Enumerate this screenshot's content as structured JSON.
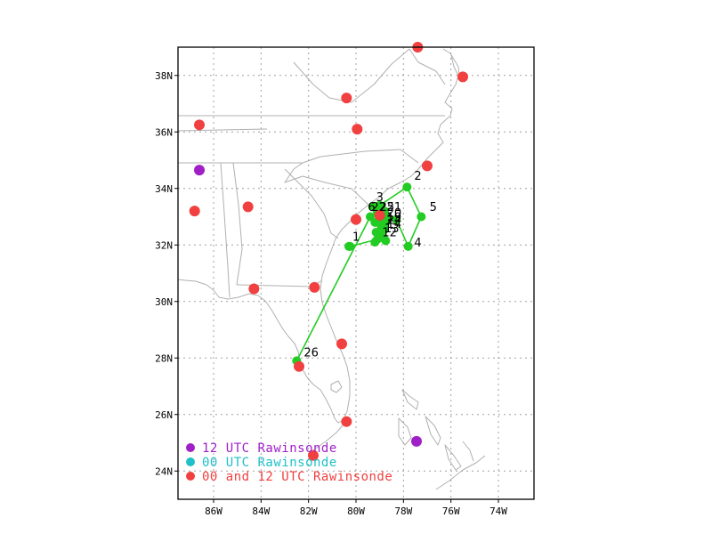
{
  "map": {
    "lon_range": [
      -87.5,
      -72.5
    ],
    "lat_range": [
      23,
      39
    ],
    "grid": true,
    "x_ticks": [
      {
        "value": -86,
        "label": "86W"
      },
      {
        "value": -84,
        "label": "84W"
      },
      {
        "value": -82,
        "label": "82W"
      },
      {
        "value": -80,
        "label": "80W"
      },
      {
        "value": -78,
        "label": "78W"
      },
      {
        "value": -76,
        "label": "76W"
      },
      {
        "value": -74,
        "label": "74W"
      }
    ],
    "y_ticks": [
      {
        "value": 24,
        "label": "24N"
      },
      {
        "value": 26,
        "label": "26N"
      },
      {
        "value": 28,
        "label": "28N"
      },
      {
        "value": 30,
        "label": "30N"
      },
      {
        "value": 32,
        "label": "32N"
      },
      {
        "value": 34,
        "label": "34N"
      },
      {
        "value": 36,
        "label": "36N"
      },
      {
        "value": 38,
        "label": "38N"
      }
    ]
  },
  "colors": {
    "track": "#22cc22",
    "sonde_12utc": "#a020c8",
    "sonde_00utc": "#20c0c8",
    "sonde_00_and_12utc": "#f04040",
    "coast": "#b0b0b0",
    "grid": "#a0a0a0"
  },
  "legend": {
    "items": [
      {
        "key": "12utc",
        "label": "12 UTC Rawinsonde",
        "color": "#a020c8"
      },
      {
        "key": "00utc",
        "label": "00 UTC Rawinsonde",
        "color": "#20c0c8"
      },
      {
        "key": "both",
        "label": "00 and 12 UTC Rawinsonde",
        "color": "#f04040"
      }
    ]
  },
  "chart_data": {
    "type": "scatter",
    "track_points": [
      {
        "lon": -80.3,
        "lat": 31.95
      },
      {
        "lon": -80.25,
        "lat": 31.95
      },
      {
        "lon": -79.1,
        "lat": 32.2
      },
      {
        "lon": -78.75,
        "lat": 32.15
      },
      {
        "lon": -79.05,
        "lat": 32.35
      },
      {
        "lon": -78.8,
        "lat": 32.55
      },
      {
        "lon": -78.95,
        "lat": 32.7
      },
      {
        "lon": -78.7,
        "lat": 32.85
      },
      {
        "lon": -79.0,
        "lat": 32.95
      },
      {
        "lon": -78.75,
        "lat": 33.05
      },
      {
        "lon": -79.1,
        "lat": 33.15
      },
      {
        "lon": -78.8,
        "lat": 33.2
      },
      {
        "lon": -79.3,
        "lat": 33.35
      },
      {
        "lon": -79.0,
        "lat": 33.4
      },
      {
        "lon": -77.85,
        "lat": 34.05
      },
      {
        "lon": -77.25,
        "lat": 33.0
      },
      {
        "lon": -77.8,
        "lat": 31.95
      },
      {
        "lon": -78.3,
        "lat": 32.9
      },
      {
        "lon": -78.95,
        "lat": 33.05
      },
      {
        "lon": -79.2,
        "lat": 32.1
      },
      {
        "lon": -78.85,
        "lat": 32.25
      },
      {
        "lon": -79.15,
        "lat": 32.45
      },
      {
        "lon": -78.85,
        "lat": 32.65
      },
      {
        "lon": -79.2,
        "lat": 32.8
      },
      {
        "lon": -79.4,
        "lat": 33.0
      },
      {
        "lon": -82.5,
        "lat": 27.9
      }
    ],
    "track_labels": [
      {
        "text": "1",
        "lon": -80.15,
        "lat": 32.15
      },
      {
        "text": "2",
        "lon": -77.55,
        "lat": 34.3
      },
      {
        "text": "3",
        "lon": -79.15,
        "lat": 33.55
      },
      {
        "text": "4",
        "lon": -77.55,
        "lat": 31.95
      },
      {
        "text": "5",
        "lon": -76.9,
        "lat": 33.2
      },
      {
        "text": "6",
        "lon": -79.5,
        "lat": 33.2
      },
      {
        "text": "22",
        "lon": -79.35,
        "lat": 33.2
      },
      {
        "text": "25",
        "lon": -79.0,
        "lat": 33.2
      },
      {
        "text": "21",
        "lon": -78.7,
        "lat": 33.2
      },
      {
        "text": "20",
        "lon": -78.7,
        "lat": 33.0
      },
      {
        "text": "19",
        "lon": -78.7,
        "lat": 32.85
      },
      {
        "text": "24",
        "lon": -78.7,
        "lat": 32.75
      },
      {
        "text": "14",
        "lon": -78.7,
        "lat": 32.6
      },
      {
        "text": "13",
        "lon": -78.8,
        "lat": 32.45
      },
      {
        "text": "12",
        "lon": -78.9,
        "lat": 32.3
      },
      {
        "text": "26",
        "lon": -82.2,
        "lat": 28.05
      }
    ],
    "rawinsondes": [
      {
        "lon": -77.4,
        "lat": 39.0,
        "type": "both"
      },
      {
        "lon": -75.5,
        "lat": 37.95,
        "type": "both"
      },
      {
        "lon": -80.4,
        "lat": 37.2,
        "type": "both"
      },
      {
        "lon": -86.6,
        "lat": 36.25,
        "type": "both"
      },
      {
        "lon": -79.95,
        "lat": 36.1,
        "type": "both"
      },
      {
        "lon": -77.0,
        "lat": 34.8,
        "type": "both"
      },
      {
        "lon": -86.6,
        "lat": 34.65,
        "type": "12utc"
      },
      {
        "lon": -84.55,
        "lat": 33.35,
        "type": "both"
      },
      {
        "lon": -86.8,
        "lat": 33.2,
        "type": "both"
      },
      {
        "lon": -80.0,
        "lat": 32.9,
        "type": "both"
      },
      {
        "lon": -79.0,
        "lat": 33.05,
        "type": "both"
      },
      {
        "lon": -84.3,
        "lat": 30.45,
        "type": "both"
      },
      {
        "lon": -81.75,
        "lat": 30.5,
        "type": "both"
      },
      {
        "lon": -80.6,
        "lat": 28.5,
        "type": "both"
      },
      {
        "lon": -82.4,
        "lat": 27.7,
        "type": "both"
      },
      {
        "lon": -80.4,
        "lat": 25.75,
        "type": "both"
      },
      {
        "lon": -77.45,
        "lat": 25.05,
        "type": "12utc"
      },
      {
        "lon": -81.8,
        "lat": 24.55,
        "type": "both"
      }
    ]
  }
}
